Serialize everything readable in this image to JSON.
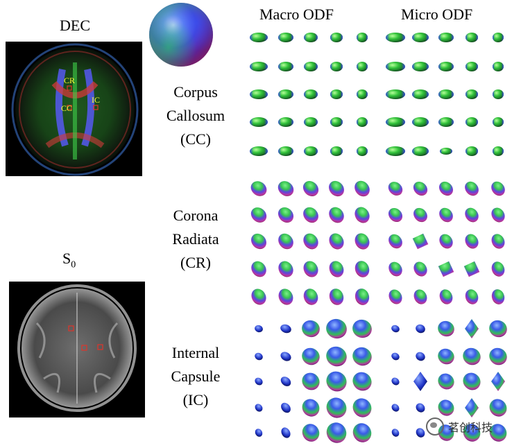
{
  "labels": {
    "dec": "DEC",
    "s0_base": "S",
    "s0_sub": "0",
    "macro": "Macro ODF",
    "micro": "Micro ODF"
  },
  "regions": [
    {
      "lines": [
        "Corpus",
        "Callosum",
        "(CC)"
      ]
    },
    {
      "lines": [
        "Corona",
        "Radiata",
        "(CR)"
      ]
    },
    {
      "lines": [
        "Internal",
        "Capsule",
        "(IC)"
      ]
    }
  ],
  "dec_annotations": {
    "cr": "CR",
    "cc": "CC",
    "ic": "IC"
  },
  "watermark": "茗创科技",
  "colors": {
    "annotation_yellow": "#ffff33",
    "roi_red": "#e0342a"
  }
}
